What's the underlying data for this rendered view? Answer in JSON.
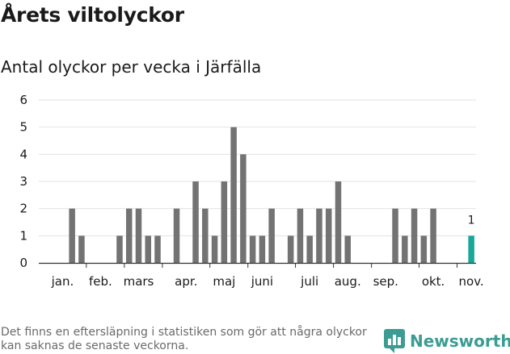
{
  "header": {
    "title": "Årets viltolyckor",
    "subtitle": "Antal olyckor per vecka i Järfälla"
  },
  "footer": {
    "note": "Det finns en eftersläpning i statistiken som gör att några olyckor kan saknas de senaste veckorna.",
    "brand": "Newsworthy"
  },
  "colors": {
    "bar": "#737373",
    "highlight": "#19a69b",
    "grid": "#e2e2e2",
    "axis": "#333333"
  },
  "chart_data": {
    "type": "bar",
    "title": "Antal olyckor per vecka i Järfälla",
    "xlabel": "",
    "ylabel": "",
    "ylim": [
      0,
      6
    ],
    "yticks": [
      0,
      1,
      2,
      3,
      4,
      5,
      6
    ],
    "x": [
      1,
      2,
      3,
      4,
      5,
      6,
      7,
      8,
      9,
      10,
      11,
      12,
      13,
      14,
      15,
      16,
      17,
      18,
      19,
      20,
      21,
      22,
      23,
      24,
      25,
      26,
      27,
      28,
      29,
      30,
      31,
      32,
      33,
      34,
      35,
      36,
      37,
      38,
      39,
      40,
      41,
      42,
      43,
      44,
      45,
      46
    ],
    "values": [
      0,
      0,
      0,
      2,
      1,
      0,
      0,
      0,
      1,
      2,
      2,
      1,
      1,
      0,
      2,
      0,
      3,
      2,
      1,
      3,
      5,
      4,
      1,
      1,
      2,
      0,
      1,
      2,
      1,
      2,
      2,
      3,
      1,
      0,
      0,
      0,
      0,
      2,
      1,
      2,
      1,
      2,
      0,
      0,
      0,
      1
    ],
    "highlight_index": 45,
    "annotations": [
      {
        "index": 45,
        "text": "1"
      }
    ],
    "month_labels": [
      {
        "label": "jan.",
        "x": 2.5
      },
      {
        "label": "feb.",
        "x": 6.5
      },
      {
        "label": "mars",
        "x": 10.5
      },
      {
        "label": "apr.",
        "x": 15.5
      },
      {
        "label": "maj",
        "x": 19.5
      },
      {
        "label": "juni",
        "x": 23.5
      },
      {
        "label": "juli",
        "x": 28.5
      },
      {
        "label": "aug.",
        "x": 32.5
      },
      {
        "label": "sep.",
        "x": 36.5
      },
      {
        "label": "okt.",
        "x": 41.5
      },
      {
        "label": "nov.",
        "x": 45.5
      }
    ],
    "month_ticks": [
      5,
      9,
      13,
      18,
      22,
      27,
      31,
      35,
      40,
      44
    ],
    "grid": true
  }
}
